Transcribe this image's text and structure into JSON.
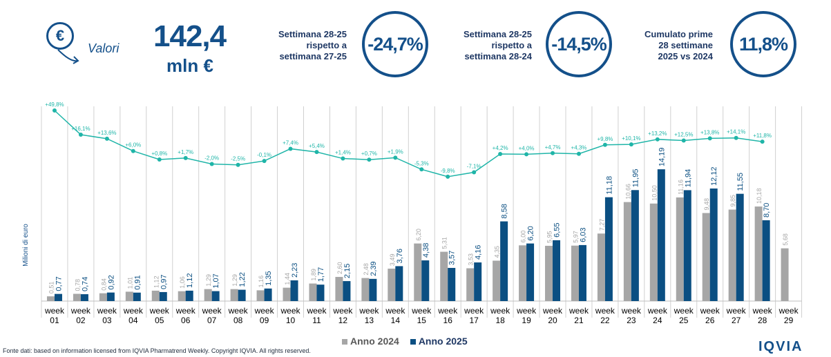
{
  "header": {
    "euro_symbol": "€",
    "valori_label": "Valori",
    "total_value": "142,4",
    "total_unit": "mln €",
    "kpis": [
      {
        "label_lines": [
          "Settimana 28-25",
          "rispetto a",
          "settimana 27-25"
        ],
        "value": "-24,7%"
      },
      {
        "label_lines": [
          "Settimana 28-25",
          "rispetto a",
          "settimana 28-24"
        ],
        "value": "-14,5%"
      },
      {
        "label_lines": [
          "Cumulato prime",
          "28 settimane",
          "2025 vs 2024"
        ],
        "value": "11,8%"
      }
    ]
  },
  "chart_data": {
    "type": "bar",
    "ylabel": "Milioni di euro",
    "categories": [
      [
        "week",
        "01"
      ],
      [
        "week",
        "02"
      ],
      [
        "week",
        "03"
      ],
      [
        "week",
        "04"
      ],
      [
        "week",
        "05"
      ],
      [
        "week",
        "06"
      ],
      [
        "week",
        "07"
      ],
      [
        "week",
        "08"
      ],
      [
        "week",
        "09"
      ],
      [
        "week",
        "10"
      ],
      [
        "week",
        "11"
      ],
      [
        "week",
        "12"
      ],
      [
        "week",
        "13"
      ],
      [
        "week",
        "14"
      ],
      [
        "week",
        "15"
      ],
      [
        "week",
        "16"
      ],
      [
        "week",
        "17"
      ],
      [
        "week",
        "18"
      ],
      [
        "week",
        "19"
      ],
      [
        "week",
        "20"
      ],
      [
        "week",
        "21"
      ],
      [
        "week",
        "22"
      ],
      [
        "week",
        "23"
      ],
      [
        "week",
        "24"
      ],
      [
        "week",
        "25"
      ],
      [
        "week",
        "26"
      ],
      [
        "week",
        "27"
      ],
      [
        "week",
        "28"
      ],
      [
        "week",
        "29"
      ]
    ],
    "series": [
      {
        "name": "Anno 2024",
        "color": "#a6a6a6",
        "values": [
          0.51,
          0.78,
          0.84,
          1.01,
          1.12,
          1.06,
          1.29,
          1.29,
          1.16,
          1.44,
          1.89,
          2.6,
          2.48,
          3.49,
          6.2,
          5.31,
          3.53,
          4.35,
          6.0,
          5.95,
          5.97,
          7.27,
          10.66,
          10.5,
          11.16,
          9.48,
          9.85,
          10.18,
          5.68
        ],
        "labels": [
          "0,51",
          "0,78",
          "0,84",
          "1,01",
          "1,12",
          "1,06",
          "1,29",
          "1,29",
          "1,16",
          "1,44",
          "1,89",
          "2,60",
          "2,48",
          "3,49",
          "6,20",
          "5,31",
          "3,53",
          "4,35",
          "6,00",
          "5,95",
          "5,97",
          "7,27",
          "10,66",
          "10,50",
          "11,16",
          "9,48",
          "9,85",
          "10,18",
          "5,68"
        ]
      },
      {
        "name": "Anno 2025",
        "color": "#0b4f82",
        "values": [
          0.77,
          0.74,
          0.92,
          0.91,
          0.97,
          1.12,
          1.07,
          1.22,
          1.35,
          2.23,
          1.77,
          2.15,
          2.39,
          3.76,
          4.38,
          3.57,
          4.16,
          8.58,
          6.2,
          6.55,
          6.03,
          11.18,
          11.95,
          14.19,
          11.94,
          12.12,
          11.55,
          8.7,
          null
        ],
        "labels": [
          "0,77",
          "0,74",
          "0,92",
          "0,91",
          "0,97",
          "1,12",
          "1,07",
          "1,22",
          "1,35",
          "2,23",
          "1,77",
          "2,15",
          "2,39",
          "3,76",
          "4,38",
          "3,57",
          "4,16",
          "8,58",
          "6,20",
          "6,55",
          "6,03",
          "11,18",
          "11,95",
          "14,19",
          "11,94",
          "12,12",
          "11,55",
          "8,70",
          ""
        ]
      }
    ],
    "growth_line": {
      "color": "#1fb5a8",
      "values": [
        49.8,
        16.1,
        13.6,
        6.0,
        0.8,
        1.7,
        -2.0,
        -2.5,
        -0.1,
        7.4,
        5.4,
        1.4,
        0.7,
        1.9,
        -5.3,
        -9.8,
        -7.1,
        4.2,
        4.0,
        4.7,
        4.3,
        9.8,
        10.1,
        13.2,
        12.5,
        13.8,
        14.1,
        11.8
      ],
      "labels": [
        "+49,8%",
        "+16,1%",
        "+13,6%",
        "+6,0%",
        "+0,8%",
        "+1,7%",
        "-2,0%",
        "-2,5%",
        "-0,1%",
        "+7,4%",
        "+5,4%",
        "+1,4%",
        "+0,7%",
        "+1,9%",
        "-5,3%",
        "-9,8%",
        "-7,1%",
        "+4,2%",
        "+4,0%",
        "+4,7%",
        "+4,3%",
        "+9,8%",
        "+10,1%",
        "+13,2%",
        "+12,5%",
        "+13,8%",
        "+14,1%",
        "+11,8%"
      ]
    },
    "ylim": [
      0,
      16
    ],
    "grid": false,
    "legend_position": "bottom"
  },
  "footer": {
    "source": "Fonte dati: based on information licensed from IQVIA Pharmatrend Weekly. Copyright IQVIA. All rights reserved.",
    "logo": "IQVIA"
  }
}
